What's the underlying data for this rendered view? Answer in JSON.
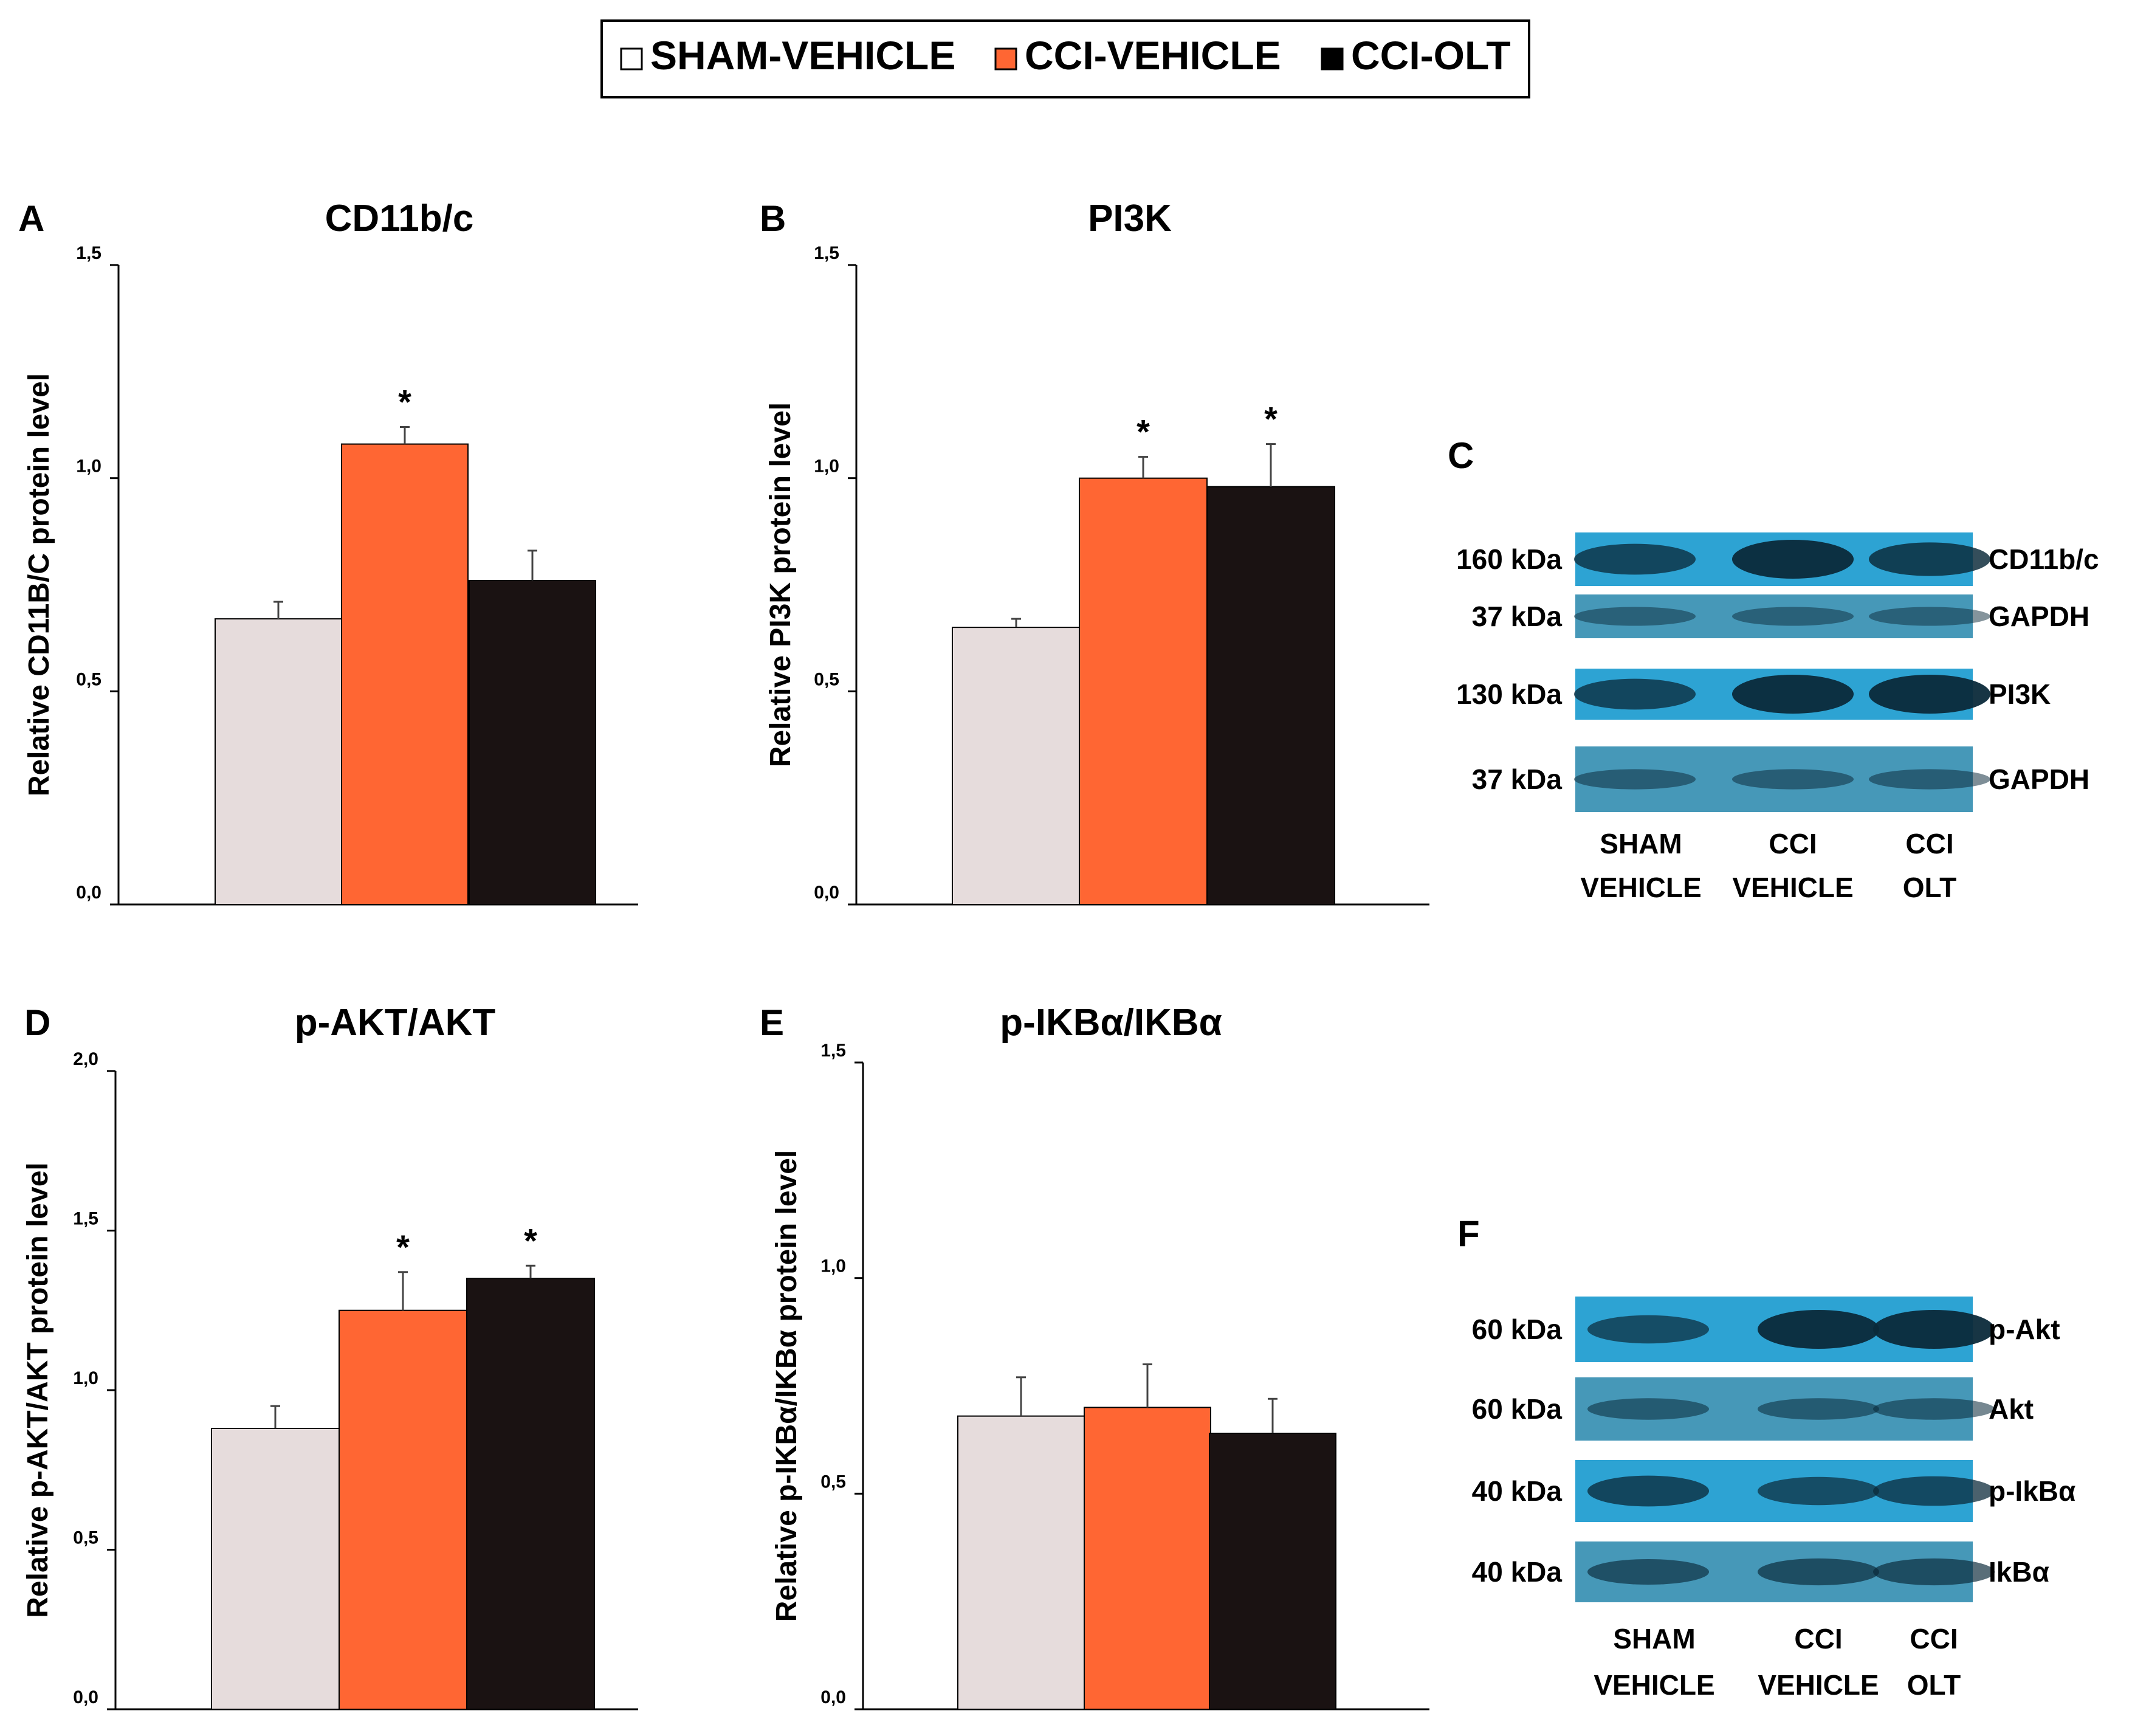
{
  "legend": {
    "entries": [
      {
        "label": "SHAM-VEHICLE",
        "color": "#ffffff"
      },
      {
        "label": "CCI-VEHICLE",
        "color": "#ff6633"
      },
      {
        "label": "CCI-OLT",
        "color": "#000000"
      }
    ]
  },
  "group_colors": [
    "#e6dcdc",
    "#ff6633",
    "#1a1212"
  ],
  "chart_data": [
    {
      "type": "bar",
      "panel": "A",
      "title": "CD11b/c",
      "ylabel": "Relative CD11B/C protein level",
      "categories": [
        "SHAM-VEHICLE",
        "CCI-VEHICLE",
        "CCI-OLT"
      ],
      "values": [
        0.67,
        1.08,
        0.76
      ],
      "errors": [
        0.04,
        0.04,
        0.07
      ],
      "significant": [
        false,
        true,
        false
      ],
      "significance_marker": "*",
      "ylim": [
        0,
        1.5
      ],
      "yticks": [
        "0,0",
        "0,5",
        "1,0",
        "1,5"
      ],
      "ytick_values": [
        0,
        0.5,
        1.0,
        1.5
      ],
      "grid": false
    },
    {
      "type": "bar",
      "panel": "B",
      "title": "PI3K",
      "ylabel": "Relative PI3K protein level",
      "categories": [
        "SHAM-VEHICLE",
        "CCI-VEHICLE",
        "CCI-OLT"
      ],
      "values": [
        0.65,
        1.0,
        0.98
      ],
      "errors": [
        0.02,
        0.05,
        0.1
      ],
      "significant": [
        false,
        true,
        true
      ],
      "significance_marker": "*",
      "ylim": [
        0,
        1.5
      ],
      "yticks": [
        "0,0",
        "0,5",
        "1,0",
        "1,5"
      ],
      "ytick_values": [
        0,
        0.5,
        1.0,
        1.5
      ],
      "grid": false
    },
    {
      "type": "bar",
      "panel": "D",
      "title": "p-AKT/AKT",
      "ylabel": "Relative p-AKT/AKT protein level",
      "categories": [
        "SHAM-VEHICLE",
        "CCI-VEHICLE",
        "CCI-OLT"
      ],
      "values": [
        0.88,
        1.25,
        1.35
      ],
      "errors": [
        0.07,
        0.12,
        0.04
      ],
      "significant": [
        false,
        true,
        true
      ],
      "significance_marker": "*",
      "ylim": [
        0,
        2.0
      ],
      "yticks": [
        "0,0",
        "0,5",
        "1,0",
        "1,5",
        "2,0"
      ],
      "ytick_values": [
        0,
        0.5,
        1.0,
        1.5,
        2.0
      ],
      "grid": false
    },
    {
      "type": "bar",
      "panel": "E",
      "title": "p-IKBα/IKBα",
      "ylabel": "Relative p-IKBα/IKBα protein level",
      "categories": [
        "SHAM-VEHICLE",
        "CCI-VEHICLE",
        "CCI-OLT"
      ],
      "values": [
        0.68,
        0.7,
        0.64
      ],
      "errors": [
        0.09,
        0.1,
        0.08
      ],
      "significant": [
        false,
        false,
        false
      ],
      "significance_marker": "*",
      "ylim": [
        0,
        1.5
      ],
      "yticks": [
        "0,0",
        "0,5",
        "1,0",
        "1,5"
      ],
      "ytick_values": [
        0,
        0.5,
        1.0,
        1.5
      ],
      "grid": false
    }
  ],
  "blots": [
    {
      "panel": "C",
      "rows": [
        {
          "kda": "160 kDa",
          "label": "CD11b/c",
          "band_strength": [
            0.7,
            1.0,
            0.8
          ]
        },
        {
          "kda": "37 kDa",
          "label": "GAPDH",
          "band_strength": [
            0.25,
            0.25,
            0.25
          ]
        },
        {
          "kda": "130 kDa",
          "label": "PI3K",
          "band_strength": [
            0.7,
            1.0,
            1.0
          ]
        },
        {
          "kda": "37 kDa",
          "label": "GAPDH",
          "band_strength": [
            0.3,
            0.3,
            0.3
          ]
        }
      ],
      "lanes": [
        {
          "line1": "SHAM",
          "line2": "VEHICLE"
        },
        {
          "line1": "CCI",
          "line2": "VEHICLE"
        },
        {
          "line1": "CCI",
          "line2": "OLT"
        }
      ]
    },
    {
      "panel": "F",
      "rows": [
        {
          "kda": "60 kDa",
          "label": "p-Akt",
          "band_strength": [
            0.6,
            1.0,
            1.0
          ]
        },
        {
          "kda": "60 kDa",
          "label": "Akt",
          "band_strength": [
            0.35,
            0.35,
            0.35
          ]
        },
        {
          "kda": "40 kDa",
          "label": "p-IkBα",
          "band_strength": [
            0.7,
            0.6,
            0.65
          ]
        },
        {
          "kda": "40 kDa",
          "label": "IkBα",
          "band_strength": [
            0.5,
            0.55,
            0.55
          ]
        }
      ],
      "lanes": [
        {
          "line1": "SHAM",
          "line2": "VEHICLE"
        },
        {
          "line1": "CCI",
          "line2": "VEHICLE"
        },
        {
          "line1": "CCI",
          "line2": "OLT"
        }
      ]
    }
  ]
}
